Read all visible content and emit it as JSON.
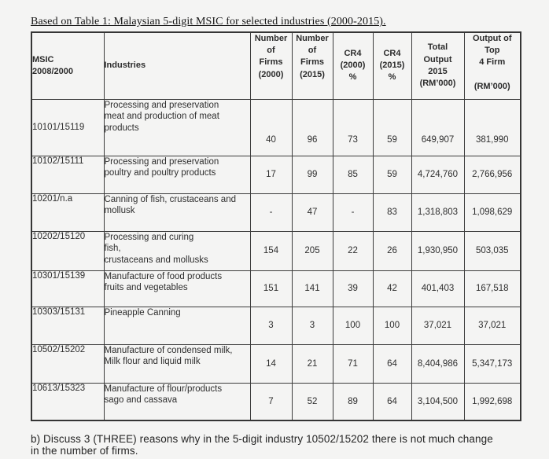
{
  "title": "Based on Table 1: Malaysian 5-digit MSIC for selected industries (2000-2015).",
  "table": {
    "columns": [
      "MSIC\n2008/2000",
      "Industries",
      "Number\nof\nFirms\n(2000)",
      "Number\nof\nFirms\n(2015)",
      "CR4\n(2000)\n%",
      "CR4\n(2015)\n%",
      "Total\nOutput\n2015\n(RM’000)",
      "Output of\nTop\n4 Firm\n\n(RM’000)"
    ],
    "rows": [
      {
        "msic": "10101/15119",
        "industry": "Processing and preservation\nmeat and production of meat\nproducts",
        "firms_2000": "40",
        "firms_2015": "96",
        "cr4_2000": "73",
        "cr4_2015": "59",
        "total_output_2015": "649,907",
        "output_top4": "381,990"
      },
      {
        "msic": "10102/15111",
        "industry": "Processing and preservation\npoultry and poultry products",
        "firms_2000": "17",
        "firms_2015": "99",
        "cr4_2000": "85",
        "cr4_2015": "59",
        "total_output_2015": "4,724,760",
        "output_top4": "2,766,956"
      },
      {
        "msic": "10201/n.a",
        "industry": "Canning of fish, crustaceans and\nmollusk",
        "firms_2000": "-",
        "firms_2015": "47",
        "cr4_2000": "-",
        "cr4_2015": "83",
        "total_output_2015": "1,318,803",
        "output_top4": "1,098,629"
      },
      {
        "msic": "10202/15120",
        "industry": "Processing and curing\nfish,\ncrustaceans and mollusks",
        "firms_2000": "154",
        "firms_2015": "205",
        "cr4_2000": "22",
        "cr4_2015": "26",
        "total_output_2015": "1,930,950",
        "output_top4": "503,035"
      },
      {
        "msic": "10301/15139",
        "industry": "Manufacture of food products\nfruits and vegetables",
        "firms_2000": "151",
        "firms_2015": "141",
        "cr4_2000": "39",
        "cr4_2015": "42",
        "total_output_2015": "401,403",
        "output_top4": "167,518"
      },
      {
        "msic": "10303/15131",
        "industry": "Pineapple Canning",
        "firms_2000": "3",
        "firms_2015": "3",
        "cr4_2000": "100",
        "cr4_2015": "100",
        "total_output_2015": "37,021",
        "output_top4": "37,021"
      },
      {
        "msic": "10502/15202",
        "industry": "Manufacture of condensed milk,\nMilk flour and liquid milk",
        "firms_2000": "14",
        "firms_2015": "21",
        "cr4_2000": "71",
        "cr4_2015": "64",
        "total_output_2015": "8,404,986",
        "output_top4": "5,347,173"
      },
      {
        "msic": "10613/15323",
        "industry": "Manufacture of flour/products\nsago and cassava",
        "firms_2000": "7",
        "firms_2015": "52",
        "cr4_2000": "89",
        "cr4_2015": "64",
        "total_output_2015": "3,104,500",
        "output_top4": "1,992,698"
      }
    ]
  },
  "footer_question": "b) Discuss 3 (THREE) reasons why in the 5-digit industry 10502/15202 there is not much change\nin the number of firms."
}
